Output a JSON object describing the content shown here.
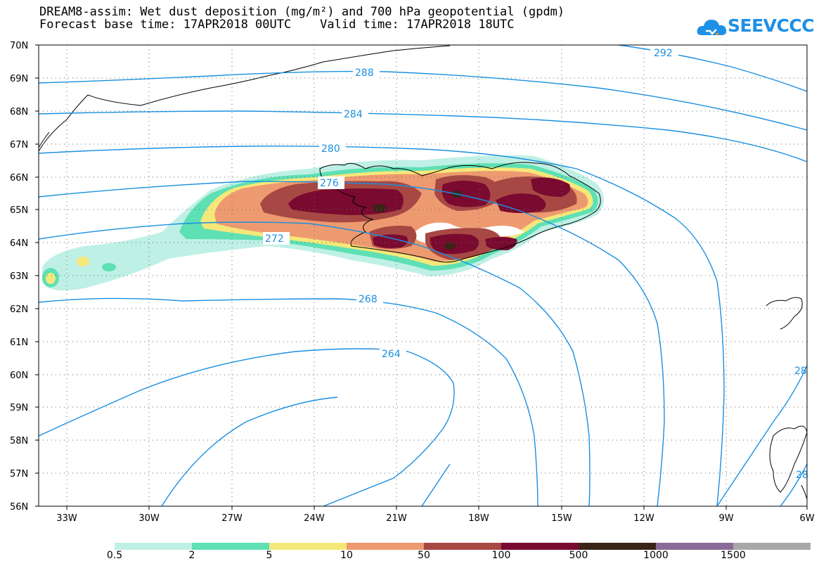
{
  "title_line1": "DREAM8-assim: Wet dust deposition (mg/m²) and 700 hPa geopotential (gpdm)",
  "title_line2": "Forecast base time: 17APR2018 00UTC    Valid time: 17APR2018 18UTC",
  "logo": {
    "text": "SEEVCCC",
    "icon": "cloud-logo-icon",
    "color": "#1e90e6"
  },
  "lat_labels": [
    "70N",
    "69N",
    "68N",
    "67N",
    "66N",
    "65N",
    "64N",
    "63N",
    "62N",
    "61N",
    "60N",
    "59N",
    "58N",
    "57N",
    "56N"
  ],
  "lon_labels": [
    "33W",
    "30W",
    "27W",
    "24W",
    "21W",
    "18W",
    "15W",
    "12W",
    "9W",
    "6W"
  ],
  "contour_labels": [
    "292",
    "288",
    "284",
    "280",
    "276",
    "272",
    "268",
    "264",
    "28",
    "28"
  ],
  "contour_color": "#1a8fe0",
  "legend": {
    "colors": [
      "#bff0e6",
      "#5ee0b4",
      "#f5e87a",
      "#ee9a70",
      "#a84844",
      "#7a0a30",
      "#3a2418",
      "#8a6a98",
      "#a8a8a8"
    ],
    "labels": [
      "0.5",
      "2",
      "5",
      "10",
      "50",
      "100",
      "500",
      "1000",
      "1500"
    ]
  }
}
